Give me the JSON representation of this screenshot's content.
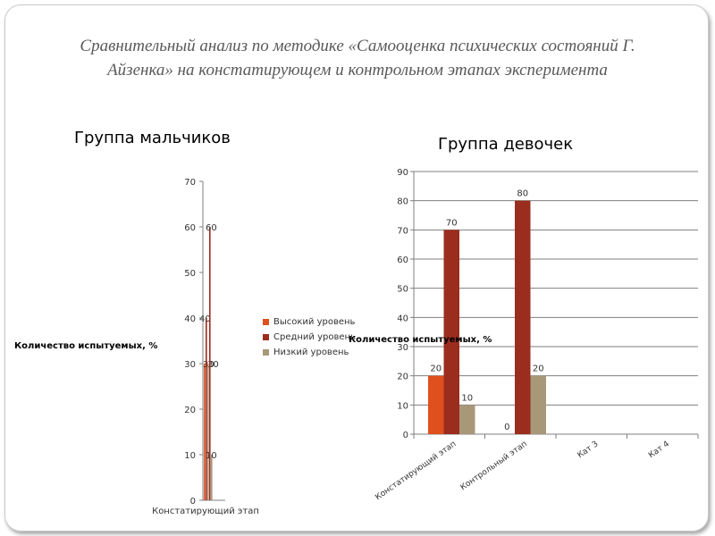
{
  "slide": {
    "title": "Сравнительный анализ по методике «Самооценка психических состояний  Г. Айзенка» на констатирующем и контрольном этапах эксперимента"
  },
  "colors": {
    "high": "#e0501e",
    "mid": "#9b2d1f",
    "low": "#a89878"
  },
  "chart_data": [
    {
      "type": "bar",
      "title": "Группа мальчиков",
      "ylabel": "Количество испытуемых, %",
      "categories": [
        "Констатирующий этап"
      ],
      "ylim": [
        0,
        70
      ],
      "yticks": [
        0,
        10,
        20,
        30,
        40,
        50,
        60,
        70
      ],
      "series": [
        {
          "name": "Высокий уровень",
          "values": [
            30
          ]
        },
        {
          "name": "Средний уровень",
          "values": [
            40
          ]
        },
        {
          "name": "Низкий уровень",
          "values": [
            30
          ]
        },
        {
          "values": [
            60
          ]
        },
        {
          "values": [
            10
          ]
        }
      ],
      "legend": "right",
      "grid": false
    },
    {
      "type": "bar",
      "title": "Группа девочек",
      "ylabel": "Количество испытуемых, %",
      "categories": [
        "Констатирующий этап",
        "Контрольный этап",
        "Кат 3",
        "Кат 4"
      ],
      "ylim": [
        0,
        90
      ],
      "yticks": [
        0,
        10,
        20,
        30,
        40,
        50,
        60,
        70,
        80,
        90
      ],
      "series": [
        {
          "name": "Высокий уровень",
          "values": [
            20,
            0,
            null,
            null
          ]
        },
        {
          "name": "Средний уровень",
          "values": [
            70,
            80,
            null,
            null
          ]
        },
        {
          "name": "Низкий уровень",
          "values": [
            10,
            20,
            null,
            null
          ]
        }
      ],
      "grid": true
    }
  ]
}
